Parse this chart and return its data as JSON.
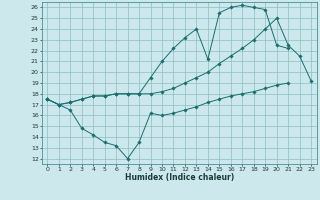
{
  "xlabel": "Humidex (Indice chaleur)",
  "bg_color": "#cce8ec",
  "grid_color": "#8bbfc4",
  "line_color": "#1a6e6e",
  "xlim": [
    -0.5,
    23.5
  ],
  "ylim": [
    11.5,
    26.5
  ],
  "xticks": [
    0,
    1,
    2,
    3,
    4,
    5,
    6,
    7,
    8,
    9,
    10,
    11,
    12,
    13,
    14,
    15,
    16,
    17,
    18,
    19,
    20,
    21,
    22,
    23
  ],
  "yticks": [
    12,
    13,
    14,
    15,
    16,
    17,
    18,
    19,
    20,
    21,
    22,
    23,
    24,
    25,
    26
  ],
  "series": [
    {
      "x": [
        0,
        1,
        2,
        3,
        4,
        5,
        6,
        7,
        8,
        9,
        10,
        11,
        12,
        13,
        14,
        15,
        16,
        17,
        18,
        19,
        20,
        21,
        22,
        23
      ],
      "y": [
        17.5,
        17.0,
        16.5,
        14.8,
        14.2,
        13.5,
        13.2,
        12.0,
        13.5,
        16.2,
        16.0,
        16.2,
        16.5,
        16.8,
        17.2,
        17.5,
        17.8,
        18.0,
        18.2,
        18.5,
        18.8,
        19.0,
        null,
        null
      ]
    },
    {
      "x": [
        0,
        1,
        2,
        3,
        4,
        5,
        6,
        7,
        8,
        9,
        10,
        11,
        12,
        13,
        14,
        15,
        16,
        17,
        18,
        19,
        20,
        21
      ],
      "y": [
        17.5,
        17.0,
        17.2,
        17.5,
        17.8,
        17.8,
        18.0,
        18.0,
        18.0,
        19.5,
        21.0,
        22.2,
        23.2,
        24.0,
        21.2,
        25.5,
        26.0,
        26.2,
        26.0,
        25.8,
        22.5,
        22.2
      ]
    },
    {
      "x": [
        0,
        1,
        2,
        3,
        4,
        5,
        6,
        7,
        8,
        9,
        10,
        11,
        12,
        13,
        14,
        15,
        16,
        17,
        18,
        19,
        20,
        21,
        22,
        23
      ],
      "y": [
        17.5,
        17.0,
        17.2,
        17.5,
        17.8,
        17.8,
        18.0,
        18.0,
        18.0,
        18.0,
        18.2,
        18.5,
        19.0,
        19.5,
        20.0,
        20.8,
        21.5,
        22.2,
        23.0,
        24.0,
        25.0,
        22.5,
        21.5,
        19.2
      ]
    }
  ]
}
